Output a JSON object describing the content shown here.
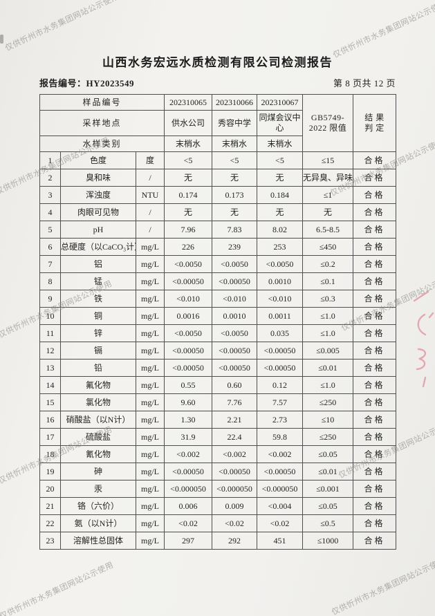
{
  "page": {
    "title": "山西水务宏远水质检测有限公司检测报告",
    "report_no": "报告编号：HY2023549",
    "page_indicator": "第 8 页共 12 页"
  },
  "watermark": {
    "text": "仅供忻州市水务集团网站公示使用"
  },
  "stamp": {
    "color": "#dd8296"
  },
  "table": {
    "header": {
      "row1_label": "样品编号",
      "sample_ids": [
        "202310065",
        "202310066",
        "202310067"
      ],
      "row2_label": "采样地点",
      "locations": [
        "供水公司",
        "秀容中学",
        "同煤会议中心"
      ],
      "row3_label": "水样类别",
      "sample_types": [
        "末梢水",
        "末梢水",
        "末梢水"
      ],
      "limit_lines": [
        "GB5749-",
        "2022 限值"
      ],
      "result_lines": [
        "结 果",
        "判 定"
      ]
    },
    "rows": [
      {
        "no": "1",
        "name": "色度",
        "unit": "度",
        "values": [
          "<5",
          "<5",
          "<5"
        ],
        "limit": "≤15",
        "result": "合格"
      },
      {
        "no": "2",
        "name": "臭和味",
        "unit": "/",
        "values": [
          "无",
          "无",
          "无"
        ],
        "limit": "无异臭、异味",
        "result": "合格"
      },
      {
        "no": "3",
        "name": "浑浊度",
        "unit": "NTU",
        "values": [
          "0.174",
          "0.173",
          "0.184"
        ],
        "limit": "≤1",
        "result": "合格"
      },
      {
        "no": "4",
        "name": "肉眼可见物",
        "unit": "/",
        "values": [
          "无",
          "无",
          "无"
        ],
        "limit": "无",
        "result": "合格"
      },
      {
        "no": "5",
        "name": "pH",
        "unit": "/",
        "values": [
          "7.96",
          "7.83",
          "8.02"
        ],
        "limit": "6.5-8.5",
        "result": "合格"
      },
      {
        "no": "6",
        "name": "总硬度（以CaCO₃计）",
        "unit": "mg/L",
        "values": [
          "226",
          "239",
          "253"
        ],
        "limit": "≤450",
        "result": "合格"
      },
      {
        "no": "7",
        "name": "铝",
        "unit": "mg/L",
        "values": [
          "<0.0050",
          "<0.0050",
          "<0.0050"
        ],
        "limit": "≤0.2",
        "result": "合格"
      },
      {
        "no": "8",
        "name": "锰",
        "unit": "mg/L",
        "values": [
          "<0.00050",
          "<0.00050",
          "0.0010"
        ],
        "limit": "≤0.1",
        "result": "合格"
      },
      {
        "no": "9",
        "name": "铁",
        "unit": "mg/L",
        "values": [
          "<0.010",
          "<0.010",
          "<0.010"
        ],
        "limit": "≤0.3",
        "result": "合格"
      },
      {
        "no": "10",
        "name": "铜",
        "unit": "mg/L",
        "values": [
          "0.0016",
          "0.0010",
          "0.0011"
        ],
        "limit": "≤1.0",
        "result": "合格"
      },
      {
        "no": "11",
        "name": "锌",
        "unit": "mg/L",
        "values": [
          "<0.0050",
          "<0.0050",
          "0.035"
        ],
        "limit": "≤1.0",
        "result": "合格"
      },
      {
        "no": "12",
        "name": "镉",
        "unit": "mg/L",
        "values": [
          "<0.00050",
          "<0.00050",
          "<0.00050"
        ],
        "limit": "≤0.005",
        "result": "合格"
      },
      {
        "no": "13",
        "name": "铅",
        "unit": "mg/L",
        "values": [
          "<0.00050",
          "<0.00050",
          "<0.00050"
        ],
        "limit": "≤0.01",
        "result": "合格"
      },
      {
        "no": "14",
        "name": "氟化物",
        "unit": "mg/L",
        "values": [
          "0.55",
          "0.60",
          "0.12"
        ],
        "limit": "≤1.0",
        "result": "合格"
      },
      {
        "no": "15",
        "name": "氯化物",
        "unit": "mg/L",
        "values": [
          "9.60",
          "7.76",
          "7.57"
        ],
        "limit": "≤250",
        "result": "合格"
      },
      {
        "no": "16",
        "name": "硝酸盐（以N计）",
        "unit": "mg/L",
        "values": [
          "1.30",
          "2.21",
          "2.73"
        ],
        "limit": "≤10",
        "result": "合格"
      },
      {
        "no": "17",
        "name": "硫酸盐",
        "unit": "mg/L",
        "values": [
          "31.9",
          "22.4",
          "59.8"
        ],
        "limit": "≤250",
        "result": "合格"
      },
      {
        "no": "18",
        "name": "氰化物",
        "unit": "mg/L",
        "values": [
          "<0.002",
          "<0.002",
          "<0.002"
        ],
        "limit": "≤0.05",
        "result": "合格"
      },
      {
        "no": "19",
        "name": "砷",
        "unit": "mg/L",
        "values": [
          "<0.00050",
          "<0.00050",
          "<0.00050"
        ],
        "limit": "≤0.01",
        "result": "合格"
      },
      {
        "no": "20",
        "name": "汞",
        "unit": "mg/L",
        "values": [
          "<0.000050",
          "<0.000050",
          "<0.000050"
        ],
        "limit": "≤0.001",
        "result": "合格"
      },
      {
        "no": "21",
        "name": "铬（六价）",
        "unit": "mg/L",
        "values": [
          "0.006",
          "0.009",
          "<0.004"
        ],
        "limit": "≤0.05",
        "result": "合格"
      },
      {
        "no": "22",
        "name": "氨（以N计）",
        "unit": "mg/L",
        "values": [
          "<0.02",
          "<0.02",
          "<0.02"
        ],
        "limit": "≤0.5",
        "result": "合格"
      },
      {
        "no": "23",
        "name": "溶解性总固体",
        "unit": "mg/L",
        "values": [
          "297",
          "292",
          "451"
        ],
        "limit": "≤1000",
        "result": "合格"
      }
    ]
  }
}
